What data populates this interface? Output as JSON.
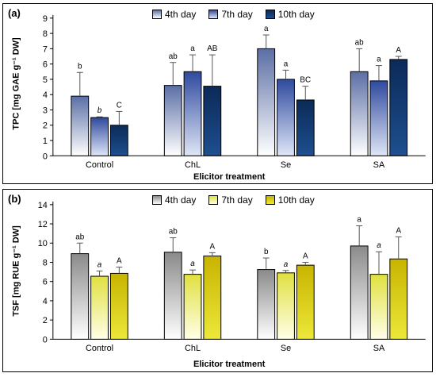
{
  "chart_data": [
    {
      "type": "bar",
      "panel_label": "(a)",
      "ylabel": "TPC [mg GAE g⁻¹ DW]",
      "xlabel": "Elicitor treatment",
      "categories": [
        "Control",
        "ChL",
        "Se",
        "SA"
      ],
      "ylim": [
        0,
        9
      ],
      "yticks": [
        0,
        1,
        2,
        3,
        4,
        5,
        6,
        7,
        8,
        9
      ],
      "legend_position": "top",
      "series": [
        {
          "name": "4th day",
          "values": [
            3.9,
            4.6,
            7.0,
            5.5
          ],
          "errors": [
            1.55,
            1.5,
            0.9,
            1.5
          ],
          "labels": [
            "b",
            "ab",
            "a",
            "ab"
          ],
          "italic": [
            false,
            false,
            false,
            false
          ],
          "gradient": [
            "#5b6ea5",
            "#ffffff"
          ]
        },
        {
          "name": "7th day",
          "values": [
            2.5,
            5.5,
            5.0,
            4.9
          ],
          "errors": [
            0.05,
            1.1,
            0.6,
            1.0
          ],
          "labels": [
            "b",
            "a",
            "a",
            "a"
          ],
          "italic": [
            true,
            false,
            false,
            false
          ],
          "gradient": [
            "#2f4a9e",
            "#dfe6f7"
          ]
        },
        {
          "name": "10th day",
          "values": [
            2.0,
            4.55,
            3.65,
            6.3
          ],
          "errors": [
            0.9,
            2.05,
            0.9,
            0.2
          ],
          "labels": [
            "C",
            "AB",
            "BC",
            "A"
          ],
          "italic": [
            false,
            false,
            false,
            false
          ],
          "gradient": [
            "#0b2a58",
            "#1e4f8f"
          ]
        }
      ]
    },
    {
      "type": "bar",
      "panel_label": "(b)",
      "ylabel": "TSF [mg RUE g⁻¹ DW]",
      "xlabel": "Elicitor treatment",
      "categories": [
        "Control",
        "ChL",
        "Se",
        "SA"
      ],
      "ylim": [
        0,
        14
      ],
      "yticks": [
        0,
        2,
        4,
        6,
        8,
        10,
        12,
        14
      ],
      "legend_position": "top",
      "series": [
        {
          "name": "4th day",
          "values": [
            8.9,
            9.05,
            7.25,
            9.7
          ],
          "errors": [
            1.1,
            1.5,
            1.2,
            2.1
          ],
          "labels": [
            "ab",
            "ab",
            "b",
            "a"
          ],
          "italic": [
            false,
            false,
            false,
            false
          ],
          "gradient": [
            "#8a8a8a",
            "#ffffff"
          ]
        },
        {
          "name": "7th day",
          "values": [
            6.55,
            6.75,
            6.9,
            6.75
          ],
          "errors": [
            0.55,
            0.45,
            0.25,
            2.35
          ],
          "labels": [
            "a",
            "a",
            "a",
            "a"
          ],
          "italic": [
            true,
            true,
            true,
            true
          ],
          "gradient": [
            "#e0e040",
            "#ffffe8"
          ]
        },
        {
          "name": "10th day",
          "values": [
            6.85,
            8.65,
            7.7,
            8.35
          ],
          "errors": [
            0.65,
            0.35,
            0.3,
            2.3
          ],
          "labels": [
            "A",
            "A",
            "A",
            "A"
          ],
          "italic": [
            false,
            false,
            false,
            false
          ],
          "gradient": [
            "#c8b400",
            "#ece83a"
          ]
        }
      ]
    }
  ]
}
